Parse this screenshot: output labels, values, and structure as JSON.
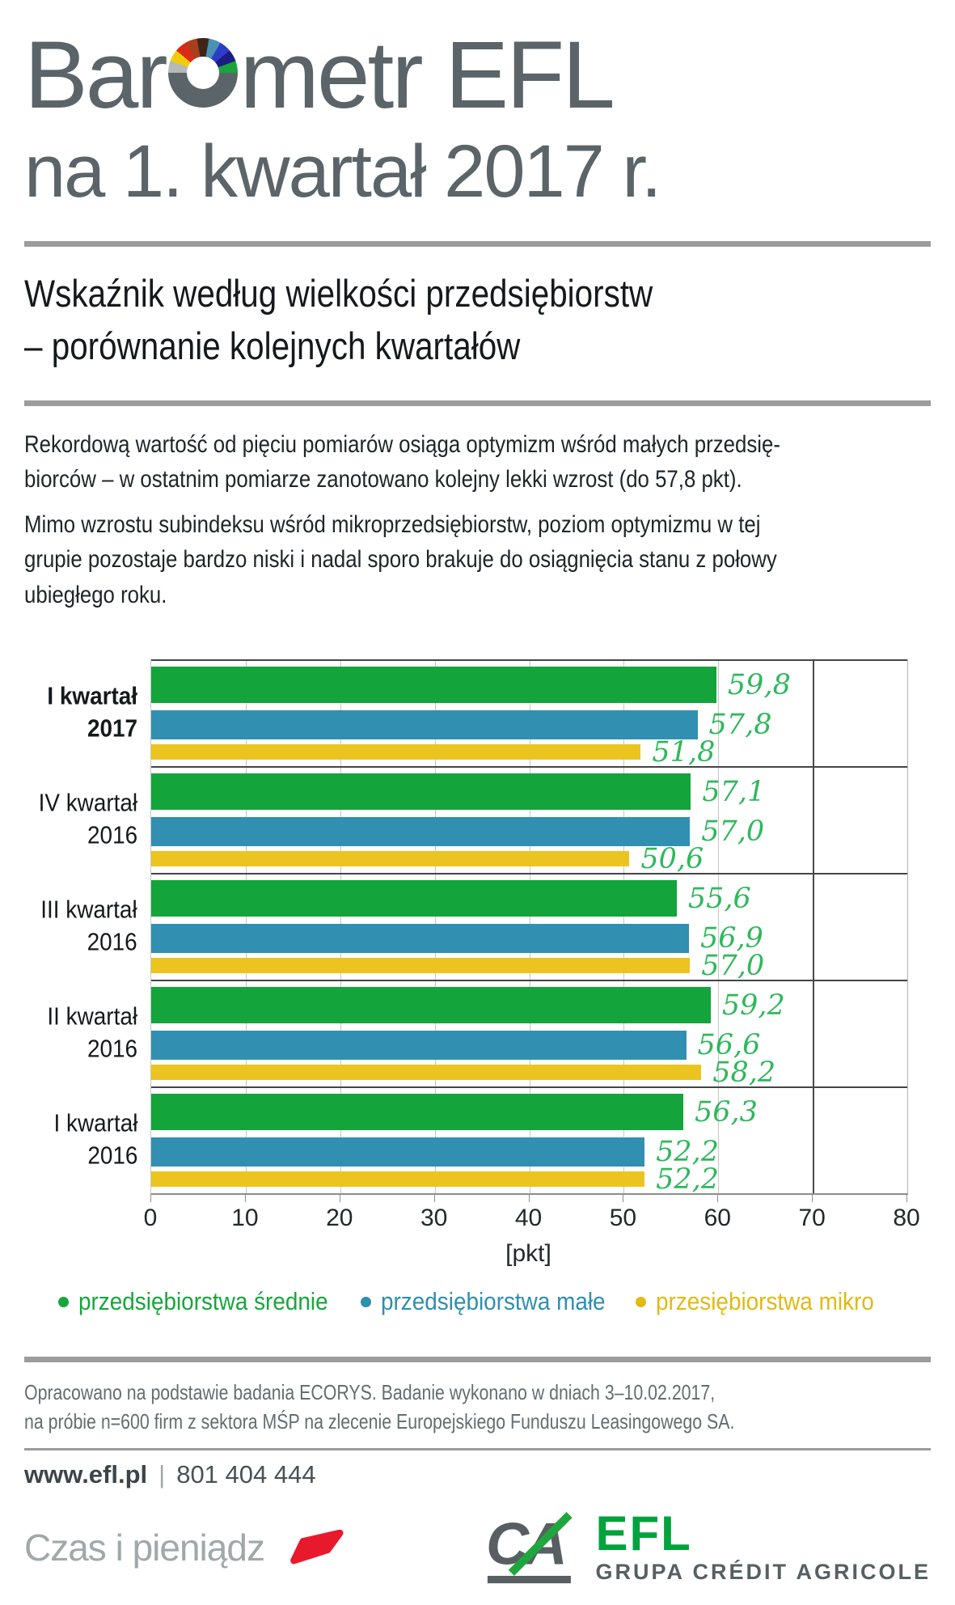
{
  "header": {
    "title_prefix": "Bar",
    "title_suffix": "metr EFL",
    "subtitle": "na 1. kwartał 2017 r.",
    "text_color": "#5b6468",
    "gauge_segment_colors": [
      "#b4b9bb",
      "#f0cc0a",
      "#da2a18",
      "#aa3f1e",
      "#3f241a",
      "#4b92b5",
      "#2c3ec8",
      "#1c1c85",
      "#17a53c"
    ],
    "gauge_base_color": "#5b6468"
  },
  "section_title": {
    "line1": "Wskaźnik według wielkości przedsiębiorstw",
    "line2": "– porównanie kolejnych kwartałów"
  },
  "intro": {
    "p1_line1": "Rekordową wartość od pięciu pomiarów osiąga optymizm wśród małych przedsię-",
    "p1_line2": "biorców – w ostatnim pomiarze zanotowano kolejny lekki wzrost (do 57,8 pkt).",
    "p2_line1": "Mimo wzrostu subindeksu wśród mikroprzedsiębiorstw, poziom optymizmu w tej",
    "p2_line2": "grupie pozostaje bardzo niski i nadal sporo brakuje do osiągnięcia stanu z połowy",
    "p2_line3": "ubiegłego roku."
  },
  "chart_data": {
    "type": "bar",
    "orientation": "horizontal",
    "categories": [
      {
        "line1": "I kwartał",
        "line2": "2017",
        "bold": true
      },
      {
        "line1": "IV kwartał",
        "line2": "2016",
        "bold": false
      },
      {
        "line1": "III kwartał",
        "line2": "2016",
        "bold": false
      },
      {
        "line1": "II kwartał",
        "line2": "2016",
        "bold": false
      },
      {
        "line1": "I kwartał",
        "line2": "2016",
        "bold": false
      }
    ],
    "series": [
      {
        "key": "srednie",
        "name": "przedsiębiorstwa średnie",
        "color": "#13a43b",
        "values": [
          59.8,
          57.1,
          55.6,
          59.2,
          56.3
        ]
      },
      {
        "key": "male",
        "name": "przedsiębiorstwa małe",
        "color": "#3190b1",
        "values": [
          57.8,
          57.0,
          56.9,
          56.6,
          52.2
        ]
      },
      {
        "key": "mikro",
        "name": "przesiębiorstwa mikro",
        "color": "#ecc41f",
        "values": [
          51.8,
          50.6,
          57.0,
          58.2,
          52.2
        ]
      }
    ],
    "value_labels": [
      [
        "59,8",
        "57,8",
        "51,8"
      ],
      [
        "57,1",
        "57,0",
        "50,6"
      ],
      [
        "55,6",
        "56,9",
        "57,0"
      ],
      [
        "59,2",
        "56,6",
        "58,2"
      ],
      [
        "56,3",
        "52,2",
        "52,2"
      ]
    ],
    "value_label_color": "#2eb85c",
    "xlabel": "[pkt]",
    "xlim": [
      0,
      80
    ],
    "xticks": [
      0,
      10,
      20,
      30,
      40,
      50,
      60,
      70,
      80
    ],
    "reference_line_x": 70,
    "grid": true,
    "legend_position": "bottom"
  },
  "legend": {
    "items": [
      {
        "label": "przedsiębiorstwa średnie",
        "color": "#17a63d"
      },
      {
        "label": "przedsiębiorstwa małe",
        "color": "#2e8fb0"
      },
      {
        "label": "przesiębiorstwa mikro",
        "color": "#e0ba16"
      }
    ]
  },
  "footnote": {
    "line1": "Opracowano na podstawie badania ECORYS. Badanie wykonano w dniach 3–10.02.2017,",
    "line2": "na próbie n=600 firm z sektora MŚP na zlecenie Europejskiego Funduszu Leasingowego SA."
  },
  "contact": {
    "website": "www.efl.pl",
    "separator": "|",
    "phone": "801 404 444"
  },
  "branding": {
    "slogan": "Czas i pieniądz",
    "accent_red": "#e8192c",
    "ca_monogram": "CA",
    "ca_color": "#575f62",
    "ca_slash_green": "#1fa73d",
    "efl_wordmark": "EFL",
    "efl_green": "#00a33c",
    "group_name": "GRUPA CRÉDIT AGRICOLE"
  }
}
